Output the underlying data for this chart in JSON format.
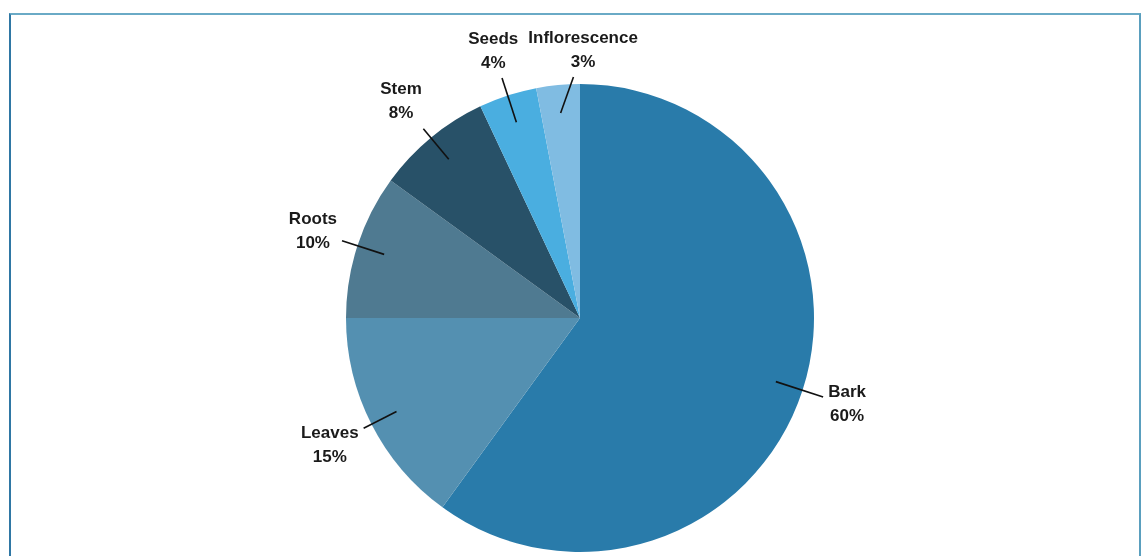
{
  "chart_data": {
    "type": "pie",
    "categories": [
      "Bark",
      "Leaves",
      "Roots",
      "Stem",
      "Seeds",
      "Inflorescence"
    ],
    "values": [
      60,
      15,
      10,
      8,
      4,
      3
    ],
    "colors": [
      "#297baa",
      "#5490b1",
      "#4f7a91",
      "#285168",
      "#4aaee0",
      "#80bce2"
    ],
    "value_labels": [
      "60%",
      "15%",
      "10%",
      "8%",
      "4%",
      "3%"
    ],
    "legend": false
  }
}
